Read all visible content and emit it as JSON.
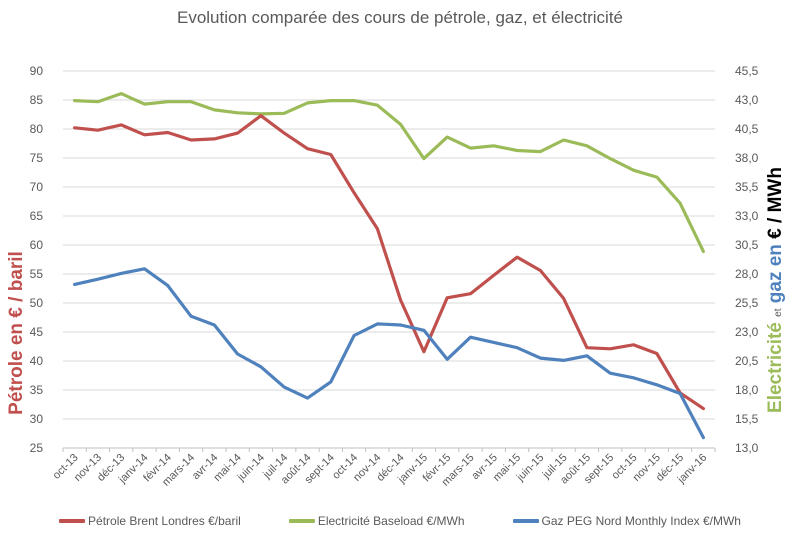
{
  "chart_data": {
    "type": "line",
    "title": "Evolution comparée des cours de pétrole, gaz, et électricité",
    "xlabel": "",
    "ylabel_left": "Pétrole en € / baril",
    "ylabel_right": {
      "part1": "Electricité",
      "part2": "et",
      "part3": "gaz en",
      "part4": "€ / MWh"
    },
    "categories": [
      "oct-13",
      "nov-13",
      "déc-13",
      "janv-14",
      "févr-14",
      "mars-14",
      "avr-14",
      "mai-14",
      "juin-14",
      "juil-14",
      "août-14",
      "sept-14",
      "oct-14",
      "nov-14",
      "déc-14",
      "janv-15",
      "févr-15",
      "mars-15",
      "avr-15",
      "mai-15",
      "juin-15",
      "juil-15",
      "août-15",
      "sept-15",
      "oct-15",
      "nov-15",
      "déc-15",
      "janv-16"
    ],
    "ylim_left": [
      25,
      90
    ],
    "yticks_left": [
      "25",
      "30",
      "35",
      "40",
      "45",
      "50",
      "55",
      "60",
      "65",
      "70",
      "75",
      "80",
      "85",
      "90"
    ],
    "ylim_right": [
      13.0,
      45.5
    ],
    "yticks_right": [
      "13,0",
      "15,5",
      "18,0",
      "20,5",
      "23,0",
      "25,5",
      "28,0",
      "30,5",
      "33,0",
      "35,5",
      "38,0",
      "40,5",
      "43,0",
      "45,5"
    ],
    "grid": true,
    "legend_position": "bottom",
    "series": [
      {
        "name": "Pétrole Brent Londres €/baril",
        "axis": "left",
        "color": "#C0504D",
        "values": [
          80.2,
          79.8,
          80.7,
          79.0,
          79.4,
          78.1,
          78.3,
          79.3,
          82.3,
          79.3,
          76.6,
          75.6,
          69.0,
          62.8,
          50.5,
          41.6,
          50.9,
          51.6,
          54.8,
          57.9,
          55.6,
          50.8,
          42.3,
          42.1,
          42.8,
          41.3,
          34.5,
          31.8
        ]
      },
      {
        "name": "Electricité Baseload €/MWh",
        "axis": "right",
        "color": "#9BBB59",
        "values": [
          42.95,
          42.85,
          43.55,
          42.65,
          42.85,
          42.85,
          42.15,
          41.9,
          41.8,
          41.85,
          42.75,
          42.95,
          42.95,
          42.55,
          40.9,
          37.95,
          39.8,
          38.85,
          39.05,
          38.65,
          38.55,
          39.55,
          39.05,
          37.95,
          36.95,
          36.35,
          34.1,
          29.95
        ]
      },
      {
        "name": "Gaz PEG Nord Monthly Index €/MWh",
        "axis": "right",
        "color": "#4F81BD",
        "values": [
          27.1,
          27.55,
          28.05,
          28.45,
          27.0,
          24.35,
          23.6,
          21.1,
          20.0,
          18.25,
          17.3,
          18.7,
          22.7,
          23.7,
          23.6,
          23.15,
          20.65,
          22.55,
          22.1,
          21.65,
          20.75,
          20.55,
          20.95,
          19.45,
          19.05,
          18.45,
          17.7,
          13.9
        ]
      }
    ]
  }
}
